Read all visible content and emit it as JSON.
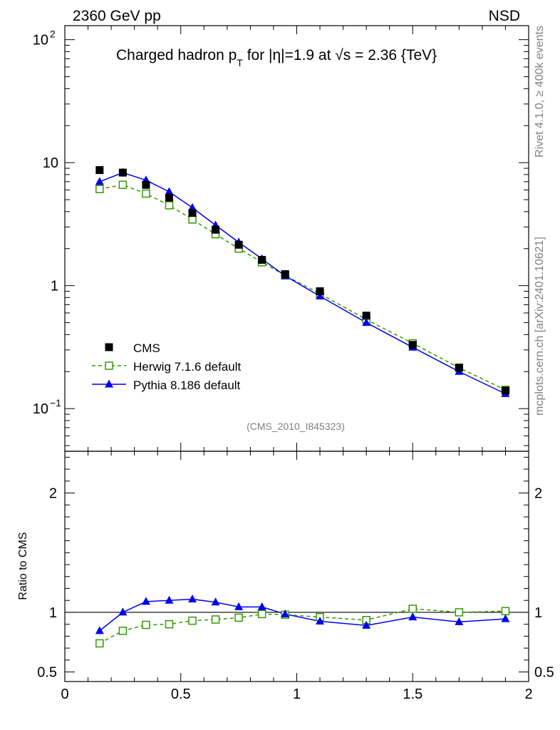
{
  "header": {
    "left": "2360 GeV pp",
    "right": "NSD"
  },
  "side_text": {
    "rivet": "Rivet 4.1.0, ≥ 400k events",
    "mcplots": "mcplots.cern.ch [arXiv:2401.10621]"
  },
  "chart_data": {
    "type": "line",
    "title": "Charged hadron p_T for |η|=1.9 at √s = 2.36 {TeV}",
    "title_parts": {
      "a": "Charged hadron p",
      "sub": "T",
      "b": " for |η|=1.9 at ",
      "sqrt": "√",
      "c": "s = 2.36 {TeV}"
    },
    "analysis_id": "(CMS_2010_I845323)",
    "xlabel": "",
    "ylabel_ratio": "Ratio to CMS",
    "xlim": [
      0,
      2
    ],
    "ylim_main": [
      0.045,
      130
    ],
    "ylim_ratio": [
      0.42,
      2.35
    ],
    "x_ticks": [
      {
        "value": 0,
        "label": "0"
      },
      {
        "value": 0.5,
        "label": "0.5"
      },
      {
        "value": 1,
        "label": "1"
      },
      {
        "value": 1.5,
        "label": "1.5"
      },
      {
        "value": 2,
        "label": "2"
      }
    ],
    "y_ticks_main": [
      {
        "value": 0.1,
        "base": "10",
        "exp": "−1"
      },
      {
        "value": 1,
        "base": "1",
        "exp": ""
      },
      {
        "value": 10,
        "base": "10",
        "exp": ""
      },
      {
        "value": 100,
        "base": "10",
        "exp": "2"
      }
    ],
    "y_ticks_ratio": [
      {
        "value": 0.5,
        "label": "0.5"
      },
      {
        "value": 1,
        "label": "1"
      },
      {
        "value": 2,
        "label": "2"
      }
    ],
    "legend_position": "bottom-left",
    "legend": [
      "CMS",
      "Herwig 7.1.6 default",
      "Pythia 8.186 default"
    ],
    "x": [
      0.15,
      0.25,
      0.35,
      0.45,
      0.55,
      0.65,
      0.75,
      0.85,
      0.95,
      1.1,
      1.3,
      1.5,
      1.7,
      1.9
    ],
    "series": [
      {
        "name": "CMS",
        "color": "#000000",
        "marker": "filled-square",
        "line": "none",
        "values": [
          8.7,
          8.3,
          6.6,
          5.2,
          3.9,
          2.85,
          2.15,
          1.62,
          1.24,
          0.9,
          0.57,
          0.33,
          0.215,
          0.14
        ]
      },
      {
        "name": "Herwig 7.1.6 default",
        "color": "#339900",
        "marker": "open-square",
        "line": "dashed",
        "values": [
          6.1,
          6.6,
          5.6,
          4.5,
          3.45,
          2.62,
          2.0,
          1.55,
          1.21,
          0.86,
          0.53,
          0.34,
          0.215,
          0.142
        ],
        "ratio": [
          0.74,
          0.845,
          0.895,
          0.9,
          0.93,
          0.94,
          0.955,
          0.985,
          0.98,
          0.96,
          0.935,
          1.03,
          1.0,
          1.01
        ]
      },
      {
        "name": "Pythia 8.186 default",
        "color": "#0000ee",
        "marker": "filled-triangle",
        "line": "solid",
        "values": [
          7.0,
          8.3,
          7.2,
          5.8,
          4.3,
          3.1,
          2.25,
          1.65,
          1.2,
          0.82,
          0.5,
          0.315,
          0.2,
          0.132
        ],
        "ratio": [
          0.845,
          1.0,
          1.09,
          1.1,
          1.11,
          1.085,
          1.045,
          1.045,
          0.985,
          0.925,
          0.89,
          0.96,
          0.92,
          0.945
        ]
      }
    ]
  }
}
